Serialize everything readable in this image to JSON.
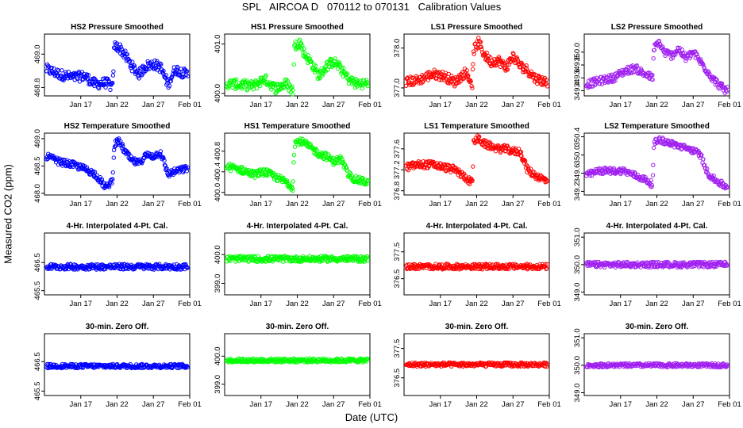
{
  "figure": {
    "title": "SPL   AIRCOA D   070112 to 070131   Calibration Values",
    "xlabel": "Date (UTC)",
    "ylabel": "Measured CO2 (ppm)"
  },
  "colors": {
    "HS2": "#0000ff",
    "HS1": "#00ff00",
    "LS1": "#ff0000",
    "LS2": "#a020f0"
  },
  "chart_data": [
    {
      "id": "r0c0",
      "type": "scatter",
      "title": "HS2 Pressure Smoothed",
      "color": "#0000ff",
      "x_range": [
        12,
        32
      ],
      "ylim": [
        468.75,
        469.12
      ],
      "yticks": [
        "468.8",
        "469.0"
      ],
      "xticks": [
        "Jan 17",
        "Jan 22",
        "Jan 27",
        "Feb 01"
      ],
      "series_knots": [
        [
          12.3,
          468.91
        ],
        [
          14,
          468.88
        ],
        [
          16,
          468.86
        ],
        [
          17.5,
          468.87
        ],
        [
          19,
          468.82
        ],
        [
          20.5,
          468.83
        ],
        [
          21.4,
          468.8
        ],
        [
          21.6,
          469.05
        ],
        [
          22.3,
          469.04
        ],
        [
          23,
          469.0
        ],
        [
          24,
          468.93
        ],
        [
          25,
          468.88
        ],
        [
          26,
          468.93
        ],
        [
          27,
          468.94
        ],
        [
          28,
          468.92
        ],
        [
          29,
          468.82
        ],
        [
          30,
          468.91
        ],
        [
          31.5,
          468.88
        ]
      ],
      "spread": 0.03
    },
    {
      "id": "r0c1",
      "type": "scatter",
      "title": "HS1 Pressure Smoothed",
      "color": "#00ff00",
      "x_range": [
        12,
        32
      ],
      "ylim": [
        399.95,
        401.2
      ],
      "yticks": [
        "400.0",
        "401.0"
      ],
      "xticks": [
        "Jan 17",
        "Jan 22",
        "Jan 27",
        "Feb 01"
      ],
      "series_knots": [
        [
          12.3,
          400.2
        ],
        [
          14,
          400.18
        ],
        [
          16,
          400.15
        ],
        [
          17.5,
          400.3
        ],
        [
          19,
          400.1
        ],
        [
          20.5,
          400.2
        ],
        [
          21.4,
          400.05
        ],
        [
          21.6,
          400.95
        ],
        [
          22.3,
          401.05
        ],
        [
          23,
          400.8
        ],
        [
          24,
          400.6
        ],
        [
          25,
          400.35
        ],
        [
          26,
          400.55
        ],
        [
          27,
          400.65
        ],
        [
          28,
          400.5
        ],
        [
          29,
          400.3
        ],
        [
          30,
          400.2
        ],
        [
          31.5,
          400.2
        ]
      ],
      "spread": 0.1
    },
    {
      "id": "r0c2",
      "type": "scatter",
      "title": "LS1 Pressure Smoothed",
      "color": "#ff0000",
      "x_range": [
        12,
        32
      ],
      "ylim": [
        376.8,
        378.35
      ],
      "yticks": [
        "377.0",
        "378.0"
      ],
      "xticks": [
        "Jan 17",
        "Jan 22",
        "Jan 27",
        "Feb 01"
      ],
      "series_knots": [
        [
          12.3,
          377.15
        ],
        [
          14,
          377.2
        ],
        [
          16,
          377.35
        ],
        [
          17.5,
          377.3
        ],
        [
          19,
          377.15
        ],
        [
          20.5,
          377.4
        ],
        [
          21.4,
          377.1
        ],
        [
          21.6,
          377.95
        ],
        [
          22.3,
          378.15
        ],
        [
          23,
          377.85
        ],
        [
          24,
          377.65
        ],
        [
          25,
          377.7
        ],
        [
          26,
          377.5
        ],
        [
          27,
          377.8
        ],
        [
          28,
          377.55
        ],
        [
          29,
          377.45
        ],
        [
          30,
          377.25
        ],
        [
          31.5,
          377.15
        ]
      ],
      "spread": 0.12
    },
    {
      "id": "r0c3",
      "type": "scatter",
      "title": "LS2 Pressure Smoothed",
      "color": "#a020f0",
      "x_range": [
        12,
        32
      ],
      "ylim": [
        349.32,
        350.28
      ],
      "yticks": [
        "349.4",
        "349.6",
        "349.8",
        "350.0"
      ],
      "xticks": [
        "Jan 17",
        "Jan 22",
        "Jan 27",
        "Feb 01"
      ],
      "series_knots": [
        [
          12.3,
          349.5
        ],
        [
          14,
          349.55
        ],
        [
          16,
          349.6
        ],
        [
          17.5,
          349.7
        ],
        [
          19,
          349.75
        ],
        [
          20.5,
          349.65
        ],
        [
          21.4,
          349.6
        ],
        [
          21.6,
          350.05
        ],
        [
          22.3,
          350.15
        ],
        [
          23,
          350.0
        ],
        [
          24,
          349.95
        ],
        [
          25,
          350.05
        ],
        [
          26,
          349.9
        ],
        [
          27,
          350.0
        ],
        [
          28,
          349.85
        ],
        [
          29,
          349.7
        ],
        [
          30,
          349.55
        ],
        [
          31.5,
          349.4
        ]
      ],
      "spread": 0.06
    },
    {
      "id": "r1c0",
      "type": "scatter",
      "title": "HS2 Temperature Smoothed",
      "color": "#0000ff",
      "x_range": [
        12,
        32
      ],
      "ylim": [
        467.97,
        469.1
      ],
      "yticks": [
        "468.0",
        "468.5",
        "469.0"
      ],
      "xticks": [
        "Jan 17",
        "Jan 22",
        "Jan 27",
        "Feb 01"
      ],
      "series_knots": [
        [
          12.3,
          468.68
        ],
        [
          14,
          468.58
        ],
        [
          16,
          468.52
        ],
        [
          17.5,
          468.45
        ],
        [
          19,
          468.35
        ],
        [
          20.5,
          468.1
        ],
        [
          21.4,
          468.25
        ],
        [
          21.6,
          468.9
        ],
        [
          22.3,
          468.95
        ],
        [
          23,
          468.78
        ],
        [
          24,
          468.6
        ],
        [
          25,
          468.55
        ],
        [
          26,
          468.7
        ],
        [
          27,
          468.68
        ],
        [
          28,
          468.75
        ],
        [
          29,
          468.35
        ],
        [
          30,
          468.4
        ],
        [
          31.5,
          468.45
        ]
      ],
      "spread": 0.06
    },
    {
      "id": "r1c1",
      "type": "scatter",
      "title": "HS1 Temperature Smoothed",
      "color": "#00ff00",
      "x_range": [
        12,
        32
      ],
      "ylim": [
        399.95,
        401.15
      ],
      "yticks": [
        "400.0",
        "400.4",
        "400.8"
      ],
      "xticks": [
        "Jan 17",
        "Jan 22",
        "Jan 27",
        "Feb 01"
      ],
      "series_knots": [
        [
          12.3,
          400.5
        ],
        [
          14,
          400.45
        ],
        [
          16,
          400.35
        ],
        [
          17.5,
          400.4
        ],
        [
          19,
          400.3
        ],
        [
          20.5,
          400.2
        ],
        [
          21.4,
          400.1
        ],
        [
          21.6,
          400.95
        ],
        [
          22.3,
          401.0
        ],
        [
          23,
          400.95
        ],
        [
          24,
          400.85
        ],
        [
          25,
          400.75
        ],
        [
          26,
          400.7
        ],
        [
          27,
          400.6
        ],
        [
          28,
          400.65
        ],
        [
          29,
          400.35
        ],
        [
          30,
          400.25
        ],
        [
          31.5,
          400.2
        ]
      ],
      "spread": 0.07
    },
    {
      "id": "r1c2",
      "type": "scatter",
      "title": "LS1 Temperature Smoothed",
      "color": "#ff0000",
      "x_range": [
        12,
        32
      ],
      "ylim": [
        376.72,
        377.9
      ],
      "yticks": [
        "376.8",
        "377.2",
        "377.6"
      ],
      "xticks": [
        "Jan 17",
        "Jan 22",
        "Jan 27",
        "Feb 01"
      ],
      "series_knots": [
        [
          12.3,
          377.25
        ],
        [
          14,
          377.3
        ],
        [
          16,
          377.3
        ],
        [
          17.5,
          377.25
        ],
        [
          19,
          377.2
        ],
        [
          20.5,
          377.05
        ],
        [
          21.4,
          376.95
        ],
        [
          21.6,
          377.75
        ],
        [
          22.3,
          377.8
        ],
        [
          23,
          377.7
        ],
        [
          24,
          377.65
        ],
        [
          25,
          377.6
        ],
        [
          26,
          377.6
        ],
        [
          27,
          377.55
        ],
        [
          28,
          377.55
        ],
        [
          29,
          377.2
        ],
        [
          30,
          377.1
        ],
        [
          31.5,
          377.0
        ]
      ],
      "spread": 0.07
    },
    {
      "id": "r1c3",
      "type": "scatter",
      "title": "LS2 Temperature Smoothed",
      "color": "#a020f0",
      "x_range": [
        12,
        32
      ],
      "ylim": [
        349.12,
        350.48
      ],
      "yticks": [
        "349.2",
        "349.6",
        "350.0",
        "350.4"
      ],
      "xticks": [
        "Jan 17",
        "Jan 22",
        "Jan 27",
        "Feb 01"
      ],
      "series_knots": [
        [
          12.3,
          349.55
        ],
        [
          14,
          349.65
        ],
        [
          16,
          349.65
        ],
        [
          17.5,
          349.65
        ],
        [
          19,
          349.55
        ],
        [
          20.5,
          349.45
        ],
        [
          21.4,
          349.35
        ],
        [
          21.6,
          350.25
        ],
        [
          22.3,
          350.35
        ],
        [
          23,
          350.3
        ],
        [
          24,
          350.25
        ],
        [
          25,
          350.2
        ],
        [
          26,
          350.15
        ],
        [
          27,
          350.1
        ],
        [
          28,
          350.0
        ],
        [
          29,
          349.6
        ],
        [
          30,
          349.45
        ],
        [
          31.5,
          349.3
        ]
      ],
      "spread": 0.07
    },
    {
      "id": "r2c0",
      "type": "scatter",
      "title": "4-Hr. Interpolated 4-Pt. Cal.",
      "color": "#0000ff",
      "x_range": [
        12,
        32
      ],
      "ylim": [
        465.35,
        467.55
      ],
      "yticks": [
        "465.5",
        "466.5"
      ],
      "xticks": [
        "Jan 17",
        "Jan 22",
        "Jan 27",
        "Feb 01"
      ],
      "series_knots": [
        [
          12.3,
          466.35
        ],
        [
          32,
          466.35
        ]
      ],
      "spread": 0.1
    },
    {
      "id": "r2c1",
      "type": "scatter",
      "title": "4-Hr. Interpolated 4-Pt. Cal.",
      "color": "#00ff00",
      "x_range": [
        12,
        32
      ],
      "ylim": [
        398.6,
        400.75
      ],
      "yticks": [
        "399.0",
        "400.0"
      ],
      "xticks": [
        "Jan 17",
        "Jan 22",
        "Jan 27",
        "Feb 01"
      ],
      "series_knots": [
        [
          12.3,
          399.85
        ],
        [
          32,
          399.85
        ]
      ],
      "spread": 0.1
    },
    {
      "id": "r2c2",
      "type": "scatter",
      "title": "4-Hr. Interpolated 4-Pt. Cal.",
      "color": "#ff0000",
      "x_range": [
        12,
        32
      ],
      "ylim": [
        375.9,
        378.2
      ],
      "yticks": [
        "376.5",
        "377.5"
      ],
      "xticks": [
        "Jan 17",
        "Jan 22",
        "Jan 27",
        "Feb 01"
      ],
      "series_knots": [
        [
          12.3,
          376.95
        ],
        [
          32,
          376.95
        ]
      ],
      "spread": 0.1
    },
    {
      "id": "r2c3",
      "type": "scatter",
      "title": "4-Hr. Interpolated 4-Pt. Cal.",
      "color": "#a020f0",
      "x_range": [
        12,
        32
      ],
      "ylim": [
        348.9,
        351.15
      ],
      "yticks": [
        "349.0",
        "350.0",
        "351.0"
      ],
      "xticks": [
        "Jan 17",
        "Jan 22",
        "Jan 27",
        "Feb 01"
      ],
      "series_knots": [
        [
          12.3,
          350.0
        ],
        [
          32,
          350.0
        ]
      ],
      "spread": 0.1
    },
    {
      "id": "r3c0",
      "type": "scatter",
      "title": "30-min. Zero Off.",
      "color": "#0000ff",
      "x_range": [
        12,
        32
      ],
      "ylim": [
        465.35,
        467.45
      ],
      "yticks": [
        "465.5",
        "466.5"
      ],
      "xticks": [
        "Jan 17",
        "Jan 22",
        "Jan 27",
        "Feb 01"
      ],
      "series_knots": [
        [
          12.3,
          466.35
        ],
        [
          32,
          466.35
        ]
      ],
      "spread": 0.07
    },
    {
      "id": "r3c1",
      "type": "scatter",
      "title": "30-min. Zero Off.",
      "color": "#00ff00",
      "x_range": [
        12,
        32
      ],
      "ylim": [
        398.6,
        400.8
      ],
      "yticks": [
        "399.0",
        "400.0"
      ],
      "xticks": [
        "Jan 17",
        "Jan 22",
        "Jan 27",
        "Feb 01"
      ],
      "series_knots": [
        [
          12.3,
          399.85
        ],
        [
          32,
          399.85
        ]
      ],
      "spread": 0.07
    },
    {
      "id": "r3c2",
      "type": "scatter",
      "title": "30-min. Zero Off.",
      "color": "#ff0000",
      "x_range": [
        12,
        32
      ],
      "ylim": [
        375.9,
        378.0
      ],
      "yticks": [
        "376.5",
        "377.5"
      ],
      "xticks": [
        "Jan 17",
        "Jan 22",
        "Jan 27",
        "Feb 01"
      ],
      "series_knots": [
        [
          12.3,
          376.95
        ],
        [
          32,
          376.95
        ]
      ],
      "spread": 0.07
    },
    {
      "id": "r3c3",
      "type": "scatter",
      "title": "30-min. Zero Off.",
      "color": "#a020f0",
      "x_range": [
        12,
        32
      ],
      "ylim": [
        348.9,
        351.15
      ],
      "yticks": [
        "349.0",
        "350.0",
        "351.0"
      ],
      "xticks": [
        "Jan 17",
        "Jan 22",
        "Jan 27",
        "Feb 01"
      ],
      "series_knots": [
        [
          12.3,
          350.0
        ],
        [
          32,
          350.0
        ]
      ],
      "spread": 0.07
    }
  ]
}
